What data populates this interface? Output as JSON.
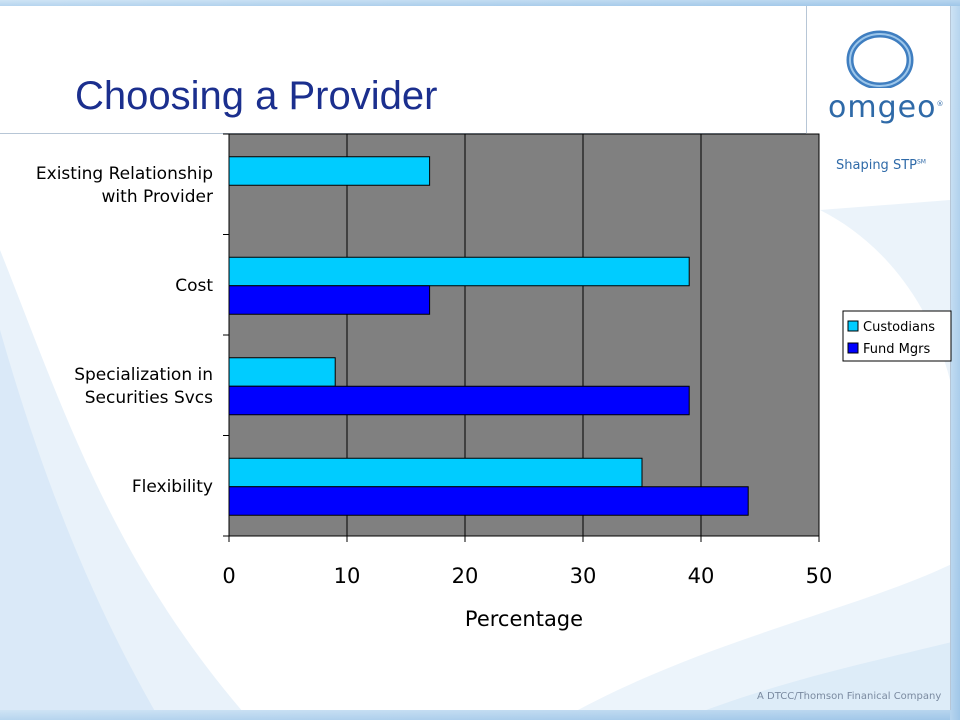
{
  "slide": {
    "title": "Choosing a Provider",
    "logo_text": "omgeo",
    "logo_mark": "®",
    "tagline": "Shaping STP",
    "tagline_mark": "SM",
    "footer": "A DTCC/Thomson Finanical Company"
  },
  "colors": {
    "title": "#1b2f8e",
    "plot_bg": "#808080",
    "custodians": "#00ccff",
    "fund_mgrs": "#0000ff",
    "logo": "#2f6aa8"
  },
  "chart_data": {
    "type": "bar",
    "orientation": "horizontal",
    "categories": [
      "Existing Relationship\nwith Provider",
      "Cost",
      "Specialization in\nSecurities Svcs",
      "Flexibility"
    ],
    "series": [
      {
        "name": "Custodians",
        "values": [
          17,
          39,
          9,
          35
        ]
      },
      {
        "name": "Fund Mgrs",
        "values": [
          0,
          17,
          39,
          44
        ]
      }
    ],
    "xlabel": "Percentage",
    "xlim": [
      0,
      50
    ],
    "xticks": [
      0,
      10,
      20,
      30,
      40,
      50
    ],
    "grid": true,
    "legend_position": "right"
  }
}
